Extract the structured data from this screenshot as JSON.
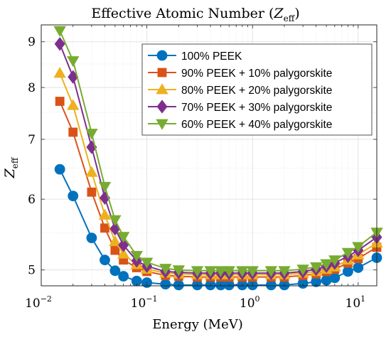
{
  "chart_data": {
    "type": "line",
    "title": "Effective Atomic Number (Z_eff)",
    "title_parts": {
      "text": "Effective Atomic Number (",
      "var": "Z",
      "sub": "eff",
      "close": ")"
    },
    "xlabel": "Energy (MeV)",
    "ylabel_parts": {
      "var": "Z",
      "sub": "eff"
    },
    "x_scale": "log",
    "y_scale": "log",
    "xlim": [
      0.01,
      15
    ],
    "ylim": [
      4.8,
      9.4
    ],
    "grid": true,
    "legend_position": "top-right",
    "x_ticks": [
      {
        "value": 0.01,
        "base": "10",
        "exp": "−2"
      },
      {
        "value": 0.1,
        "base": "10",
        "exp": "−1"
      },
      {
        "value": 1,
        "base": "10",
        "exp": "0"
      },
      {
        "value": 10,
        "base": "10",
        "exp": "1"
      }
    ],
    "y_ticks": [
      {
        "value": 5,
        "label": "5"
      },
      {
        "value": 6,
        "label": "6"
      },
      {
        "value": 7,
        "label": "7"
      },
      {
        "value": 8,
        "label": "8"
      },
      {
        "value": 9,
        "label": "9"
      }
    ],
    "x": [
      0.015,
      0.02,
      0.03,
      0.04,
      0.05,
      0.06,
      0.08,
      0.1,
      0.15,
      0.2,
      0.3,
      0.4,
      0.5,
      0.6,
      0.8,
      1,
      1.5,
      2,
      3,
      4,
      5,
      6,
      8,
      10,
      15
    ],
    "series": [
      {
        "name": "100% PEEK",
        "color": "#0072BD",
        "marker": "circle",
        "values": [
          6.48,
          6.05,
          5.43,
          5.13,
          4.99,
          4.92,
          4.86,
          4.84,
          4.82,
          4.81,
          4.81,
          4.81,
          4.81,
          4.81,
          4.81,
          4.81,
          4.81,
          4.81,
          4.83,
          4.85,
          4.87,
          4.9,
          4.98,
          5.03,
          5.16
        ]
      },
      {
        "name": "90% PEEK + 10% palygorskite",
        "color": "#D95319",
        "marker": "square",
        "values": [
          7.72,
          7.13,
          6.11,
          5.57,
          5.26,
          5.13,
          5.03,
          4.98,
          4.93,
          4.92,
          4.91,
          4.91,
          4.91,
          4.91,
          4.91,
          4.91,
          4.91,
          4.91,
          4.93,
          4.95,
          4.98,
          5.01,
          5.09,
          5.15,
          5.3
        ]
      },
      {
        "name": "80% PEEK + 20% palygorskite",
        "color": "#EDB120",
        "marker": "triangle-up",
        "values": [
          8.3,
          7.64,
          6.43,
          5.76,
          5.38,
          5.21,
          5.07,
          5.01,
          4.96,
          4.95,
          4.94,
          4.94,
          4.94,
          4.94,
          4.94,
          4.94,
          4.94,
          4.94,
          4.96,
          4.98,
          5.01,
          5.04,
          5.13,
          5.2,
          5.36
        ]
      },
      {
        "name": "70% PEEK + 30% palygorskite",
        "color": "#7E2F8E",
        "marker": "diamond",
        "values": [
          8.95,
          8.22,
          6.86,
          6.02,
          5.56,
          5.33,
          5.12,
          5.05,
          4.98,
          4.97,
          4.96,
          4.96,
          4.96,
          4.96,
          4.96,
          4.96,
          4.96,
          4.96,
          4.98,
          5.01,
          5.05,
          5.09,
          5.18,
          5.26,
          5.44
        ]
      },
      {
        "name": "60% PEEK + 40% palygorskite",
        "color": "#77AC30",
        "marker": "triangle-down",
        "values": [
          9.26,
          8.57,
          7.11,
          6.2,
          5.69,
          5.45,
          5.19,
          5.1,
          5.02,
          5.0,
          4.99,
          4.99,
          4.99,
          4.99,
          4.99,
          4.99,
          4.99,
          4.99,
          5.01,
          5.04,
          5.08,
          5.13,
          5.23,
          5.31,
          5.51
        ]
      }
    ]
  }
}
